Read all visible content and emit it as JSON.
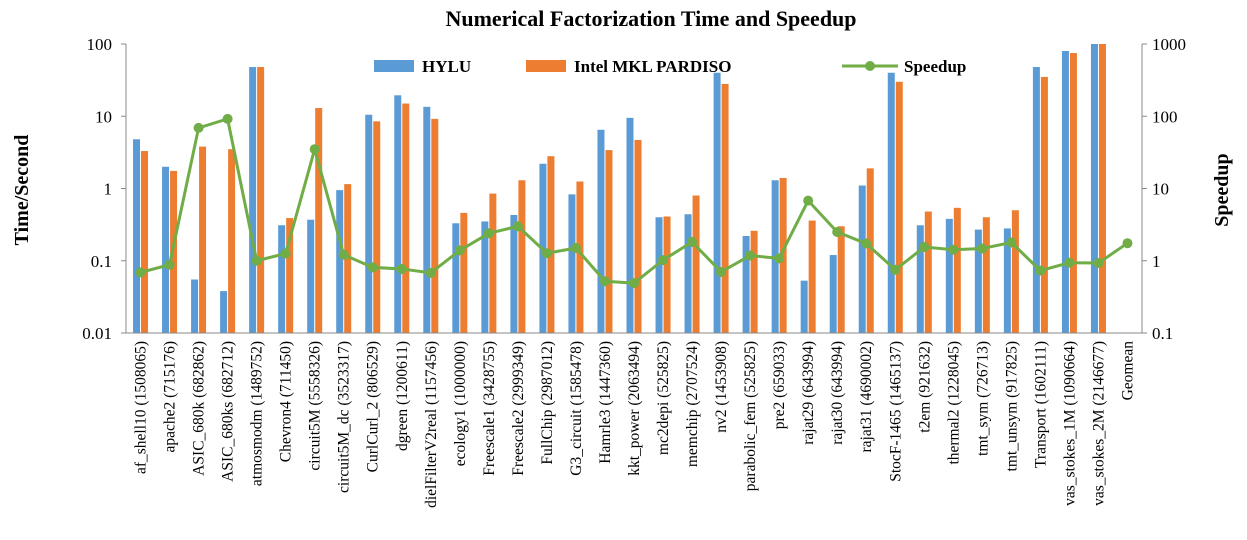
{
  "chart_data": {
    "type": "bar",
    "title": "Numerical Factorization Time and Speedup",
    "ylabel": "Time/Second",
    "y2label": "Speedup",
    "yscale": "log",
    "ylim": [
      0.01,
      100
    ],
    "y2lim": [
      0.1,
      1000
    ],
    "yticks": [
      "0.01",
      "0.1",
      "1",
      "10",
      "100"
    ],
    "y2ticks": [
      "0.1",
      "1",
      "10",
      "100",
      "1000"
    ],
    "grid": false,
    "legend": "top-center",
    "colors": {
      "HYLU": "#5B9BD5",
      "Intel MKL PARDISO": "#ED7D31",
      "Speedup": "#70AD47"
    },
    "categories": [
      "af_shell10 (1508065)",
      "apache2 (715176)",
      "ASIC_680k (682862)",
      "ASIC_680ks (682712)",
      "atmosmodm (1489752)",
      "Chevron4 (711450)",
      "circuit5M (5558326)",
      "circuit5M_dc (3523317)",
      "CurlCurl_2 (806529)",
      "dgreen (1200611)",
      "dielFilterV2real (1157456)",
      "ecology1 (1000000)",
      "Freescale1 (3428755)",
      "Freescale2 (2999349)",
      "FullChip (2987012)",
      "G3_circuit (1585478)",
      "Hamrle3 (1447360)",
      "kkt_power (2063494)",
      "mc2depi (525825)",
      "memchip (2707524)",
      "nv2 (1453908)",
      "parabolic_fem (525825)",
      "pre2 (659033)",
      "rajat29 (643994)",
      "rajat30 (643994)",
      "rajat31 (4690002)",
      "StocF-1465 (1465137)",
      "t2em (921632)",
      "thermal2 (1228045)",
      "tmt_sym (726713)",
      "tmt_unsym (917825)",
      "Transport (1602111)",
      "vas_stokes_1M (1090664)",
      "vas_stokes_2M (2146677)",
      "Geomean"
    ],
    "series": [
      {
        "name": "HYLU",
        "axis": "left",
        "values": [
          4.8,
          2.0,
          0.055,
          0.038,
          48,
          0.31,
          0.37,
          0.95,
          10.5,
          19.5,
          13.5,
          0.33,
          0.35,
          0.43,
          2.2,
          0.83,
          6.5,
          9.5,
          0.4,
          0.44,
          40,
          0.22,
          1.3,
          0.053,
          0.12,
          1.1,
          40,
          0.31,
          0.38,
          0.27,
          0.28,
          48,
          80,
          100,
          null
        ]
      },
      {
        "name": "Intel MKL PARDISO",
        "axis": "left",
        "values": [
          3.3,
          1.75,
          3.8,
          3.5,
          48,
          0.39,
          13,
          1.15,
          8.5,
          15,
          9.2,
          0.46,
          0.85,
          1.3,
          2.8,
          1.25,
          3.4,
          4.7,
          0.41,
          0.8,
          28,
          0.26,
          1.4,
          0.36,
          0.3,
          1.9,
          30,
          0.48,
          0.54,
          0.4,
          0.5,
          35,
          75,
          100,
          null
        ]
      },
      {
        "name": "Speedup",
        "axis": "right",
        "type": "line",
        "values": [
          0.69,
          0.88,
          69,
          92,
          1.0,
          1.26,
          35,
          1.21,
          0.81,
          0.77,
          0.68,
          1.39,
          2.4,
          3.0,
          1.27,
          1.5,
          0.52,
          0.49,
          1.02,
          1.82,
          0.7,
          1.18,
          1.08,
          6.8,
          2.5,
          1.73,
          0.75,
          1.55,
          1.42,
          1.48,
          1.79,
          0.73,
          0.94,
          0.93,
          1.75
        ]
      }
    ]
  }
}
